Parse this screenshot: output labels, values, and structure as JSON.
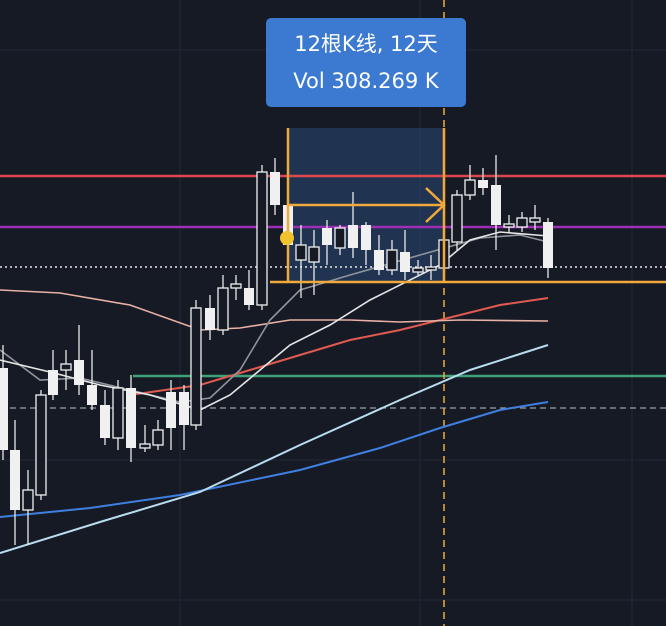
{
  "measure_tooltip": {
    "bars": "12根K线, 12天",
    "volume": "Vol 308.269 K"
  }
}
